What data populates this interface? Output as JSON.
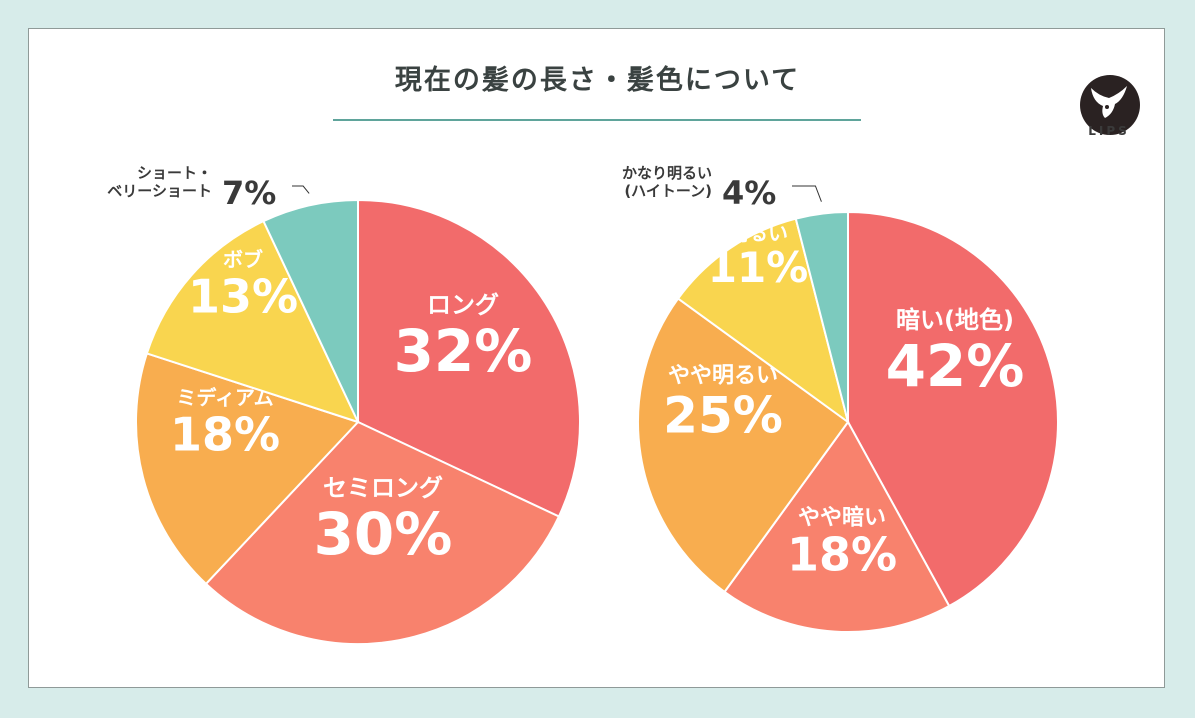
{
  "title": "現在の髪の長さ・髪色について",
  "logo_text": "LIPS",
  "colors": {
    "background": "#d7ecea",
    "accent": "#5fa49b",
    "logo": "#2a2222"
  },
  "chart_data": [
    {
      "type": "pie",
      "title": "",
      "start": "12 o'clock, clockwise",
      "slices": [
        {
          "label": "ロング",
          "value": 32,
          "color": "#f26b6b"
        },
        {
          "label": "セミロング",
          "value": 30,
          "color": "#f8826d"
        },
        {
          "label": "ミディアム",
          "value": 18,
          "color": "#f8ad4f"
        },
        {
          "label": "ボブ",
          "value": 13,
          "color": "#f9d54f"
        },
        {
          "label": "ショート・ベリーショート",
          "label_lines": [
            "ショート・",
            "ベリーショート"
          ],
          "value": 7,
          "color": "#7ccabe",
          "outside": true
        }
      ]
    },
    {
      "type": "pie",
      "title": "",
      "start": "12 o'clock, clockwise",
      "slices": [
        {
          "label": "暗い(地色)",
          "value": 42,
          "color": "#f26b6b"
        },
        {
          "label": "やや暗い",
          "value": 18,
          "color": "#f8826d"
        },
        {
          "label": "やや明るい",
          "value": 25,
          "color": "#f8ad4f"
        },
        {
          "label": "明るい",
          "value": 11,
          "color": "#f9d54f"
        },
        {
          "label": "かなり明るい(ハイトーン)",
          "label_lines": [
            "かなり明るい",
            "(ハイトーン)"
          ],
          "value": 4,
          "color": "#7ccabe",
          "outside": true
        }
      ]
    }
  ]
}
